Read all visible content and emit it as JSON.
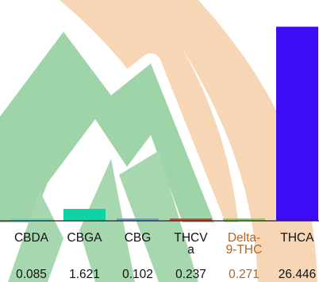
{
  "chart_data": {
    "type": "bar",
    "categories": [
      "CBDA",
      "CBGA",
      "CBG",
      "THCVa",
      "Delta-9-THC",
      "THCA"
    ],
    "category_label_lines": [
      [
        "CBDA"
      ],
      [
        "CBGA"
      ],
      [
        "CBG"
      ],
      [
        "THCV",
        "a"
      ],
      [
        "Delta-",
        "9-THC"
      ],
      [
        "THCA"
      ]
    ],
    "values": [
      0.085,
      1.621,
      0.102,
      0.237,
      0.271,
      26.446
    ],
    "value_labels": [
      "0.085",
      "1.621",
      "0.102",
      "0.237",
      "0.271",
      "26.446"
    ],
    "colors": [
      "#6fd6c4",
      "#10d3a5",
      "#6a9fd6",
      "#d9463a",
      "#7fd35a",
      "#3c0cf5"
    ],
    "label_colors": [
      "#111111",
      "#111111",
      "#111111",
      "#111111",
      "#b5651d",
      "#111111"
    ],
    "ylim": [
      0,
      29
    ],
    "grid": false,
    "legend": "none",
    "title": "",
    "xlabel": "",
    "ylabel": ""
  }
}
